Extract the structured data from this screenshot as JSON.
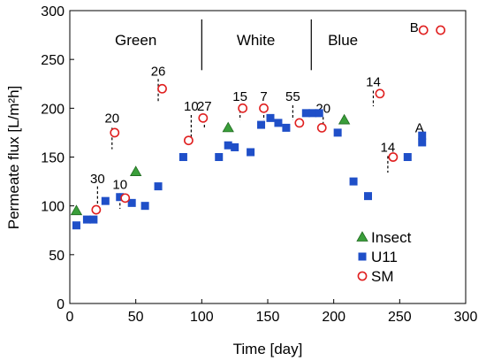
{
  "chart_data": {
    "type": "scatter",
    "xlabel": "Time [day]",
    "ylabel": "Permeate flux [L/m²h]",
    "xlim": [
      0,
      300
    ],
    "ylim": [
      0,
      300
    ],
    "xticks": [
      0,
      50,
      100,
      150,
      200,
      250,
      300
    ],
    "yticks": [
      0,
      50,
      100,
      150,
      200,
      250,
      300
    ],
    "grid": false,
    "legend_position": "bottom-right",
    "regions": [
      {
        "label": "Green",
        "x_center": 50
      },
      {
        "label": "White",
        "x_center": 141
      },
      {
        "label": "Blue",
        "x_center": 207
      }
    ],
    "region_dividers": [
      100,
      183
    ],
    "series": [
      {
        "name": "Insect",
        "marker": "triangle",
        "color": "#3a9e3a",
        "points": [
          {
            "x": 5,
            "y": 95
          },
          {
            "x": 50,
            "y": 135
          },
          {
            "x": 120,
            "y": 180
          },
          {
            "x": 208,
            "y": 188
          }
        ]
      },
      {
        "name": "U11",
        "marker": "square",
        "color": "#1f4fc8",
        "points": [
          {
            "x": 5,
            "y": 80
          },
          {
            "x": 13,
            "y": 86
          },
          {
            "x": 18,
            "y": 86
          },
          {
            "x": 27,
            "y": 105
          },
          {
            "x": 38,
            "y": 109
          },
          {
            "x": 47,
            "y": 103
          },
          {
            "x": 57,
            "y": 100
          },
          {
            "x": 67,
            "y": 120
          },
          {
            "x": 86,
            "y": 150
          },
          {
            "x": 113,
            "y": 150
          },
          {
            "x": 120,
            "y": 162
          },
          {
            "x": 125,
            "y": 160
          },
          {
            "x": 137,
            "y": 155
          },
          {
            "x": 145,
            "y": 183
          },
          {
            "x": 152,
            "y": 190
          },
          {
            "x": 158,
            "y": 185
          },
          {
            "x": 164,
            "y": 180
          },
          {
            "x": 179,
            "y": 195
          },
          {
            "x": 184,
            "y": 195
          },
          {
            "x": 189,
            "y": 195
          },
          {
            "x": 203,
            "y": 175
          },
          {
            "x": 215,
            "y": 125
          },
          {
            "x": 226,
            "y": 110
          },
          {
            "x": 256,
            "y": 150
          },
          {
            "x": 267,
            "y": 165
          },
          {
            "x": 267,
            "y": 172
          }
        ]
      },
      {
        "name": "SM",
        "marker": "circle",
        "color": "#e02020",
        "points": [
          {
            "x": 20,
            "y": 96
          },
          {
            "x": 42,
            "y": 108
          },
          {
            "x": 34,
            "y": 175
          },
          {
            "x": 70,
            "y": 220
          },
          {
            "x": 90,
            "y": 167
          },
          {
            "x": 101,
            "y": 190
          },
          {
            "x": 131,
            "y": 200
          },
          {
            "x": 147,
            "y": 200
          },
          {
            "x": 174,
            "y": 185
          },
          {
            "x": 191,
            "y": 180
          },
          {
            "x": 235,
            "y": 215
          },
          {
            "x": 245,
            "y": 150
          },
          {
            "x": 268,
            "y": 280
          },
          {
            "x": 281,
            "y": 280
          }
        ]
      }
    ],
    "annotations": [
      {
        "label": "30",
        "x": 21,
        "y_label": 128,
        "y_top": 120,
        "y_bottom": 100
      },
      {
        "label": "10",
        "x": 38,
        "y_label": 122,
        "y_top": 113,
        "y_bottom": 97
      },
      {
        "label": "20",
        "x": 32,
        "y_label": 190,
        "y_top": 180,
        "y_bottom": 158
      },
      {
        "label": "26",
        "x": 67,
        "y_label": 238,
        "y_top": 230,
        "y_bottom": 207
      },
      {
        "label": "10",
        "x": 92,
        "y_label": 202,
        "y_top": 193,
        "y_bottom": 166
      },
      {
        "label": "27",
        "x": 102,
        "y_label": 202,
        "y_top": 193,
        "y_bottom": 180
      },
      {
        "label": "15",
        "x": 129,
        "y_label": 212,
        "y_top": 203,
        "y_bottom": 188
      },
      {
        "label": "7",
        "x": 147,
        "y_label": 212,
        "y_top": 203,
        "y_bottom": 188
      },
      {
        "label": "55",
        "x": 169,
        "y_label": 212,
        "y_top": 203,
        "y_bottom": 188
      },
      {
        "label": "20",
        "x": 192,
        "y_label": 200,
        "y_top": 191,
        "y_bottom": 182
      },
      {
        "label": "14",
        "x": 230,
        "y_label": 227,
        "y_top": 218,
        "y_bottom": 202
      },
      {
        "label": "14",
        "x": 241,
        "y_label": 160,
        "y_top": 151,
        "y_bottom": 134
      },
      {
        "label": "A",
        "x": 265,
        "y_label": 180,
        "y_top": 0,
        "y_bottom": 0
      },
      {
        "label": "B",
        "x": 261,
        "y_label": 283,
        "y_top": 0,
        "y_bottom": 0
      }
    ]
  }
}
